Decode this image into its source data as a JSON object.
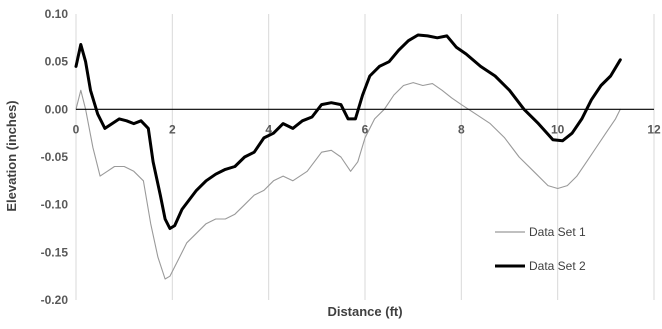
{
  "chart_data": {
    "type": "line",
    "title": "",
    "xlabel": "Distance (ft)",
    "ylabel": "Elevation (inches)",
    "xlim": [
      0,
      12
    ],
    "ylim": [
      -0.2,
      0.1
    ],
    "x_ticks": [
      "0",
      "2",
      "4",
      "6",
      "8",
      "10",
      "12"
    ],
    "y_ticks": [
      "0.10",
      "0.05",
      "0.00",
      "-0.05",
      "-0.10",
      "-0.15",
      "-0.20"
    ],
    "grid": "vertical",
    "legend_position": "right",
    "series": [
      {
        "name": "Data Set 1",
        "color": "#9a9a9a",
        "x": [
          0,
          0.1,
          0.2,
          0.35,
          0.5,
          0.65,
          0.8,
          1.0,
          1.2,
          1.4,
          1.55,
          1.7,
          1.85,
          1.95,
          2.1,
          2.3,
          2.5,
          2.7,
          2.9,
          3.1,
          3.3,
          3.5,
          3.7,
          3.9,
          4.1,
          4.3,
          4.5,
          4.8,
          5.1,
          5.3,
          5.5,
          5.7,
          5.85,
          6.0,
          6.2,
          6.4,
          6.6,
          6.8,
          7.0,
          7.2,
          7.4,
          7.6,
          7.8,
          8.0,
          8.3,
          8.6,
          8.9,
          9.2,
          9.5,
          9.8,
          10.0,
          10.2,
          10.4,
          10.6,
          10.8,
          11.0,
          11.2,
          11.3
        ],
        "y": [
          0.0,
          0.02,
          0.0,
          -0.04,
          -0.07,
          -0.065,
          -0.06,
          -0.06,
          -0.065,
          -0.075,
          -0.12,
          -0.155,
          -0.178,
          -0.175,
          -0.16,
          -0.14,
          -0.13,
          -0.12,
          -0.115,
          -0.115,
          -0.11,
          -0.1,
          -0.09,
          -0.085,
          -0.075,
          -0.07,
          -0.075,
          -0.065,
          -0.045,
          -0.043,
          -0.05,
          -0.065,
          -0.055,
          -0.03,
          -0.01,
          0.0,
          0.015,
          0.025,
          0.028,
          0.025,
          0.027,
          0.02,
          0.012,
          0.005,
          -0.005,
          -0.015,
          -0.03,
          -0.05,
          -0.065,
          -0.08,
          -0.083,
          -0.08,
          -0.07,
          -0.055,
          -0.04,
          -0.025,
          -0.01,
          0.0
        ]
      },
      {
        "name": "Data Set 2",
        "color": "#000000",
        "x": [
          0,
          0.1,
          0.2,
          0.3,
          0.45,
          0.6,
          0.75,
          0.9,
          1.05,
          1.2,
          1.35,
          1.5,
          1.6,
          1.75,
          1.85,
          1.95,
          2.05,
          2.2,
          2.35,
          2.5,
          2.7,
          2.9,
          3.1,
          3.3,
          3.5,
          3.7,
          3.9,
          4.1,
          4.3,
          4.5,
          4.7,
          4.9,
          5.1,
          5.3,
          5.5,
          5.65,
          5.8,
          5.95,
          6.1,
          6.3,
          6.5,
          6.7,
          6.9,
          7.1,
          7.3,
          7.5,
          7.7,
          7.9,
          8.1,
          8.4,
          8.7,
          9.0,
          9.3,
          9.6,
          9.9,
          10.1,
          10.3,
          10.5,
          10.7,
          10.9,
          11.1,
          11.3
        ],
        "y": [
          0.045,
          0.068,
          0.05,
          0.02,
          -0.005,
          -0.02,
          -0.015,
          -0.01,
          -0.012,
          -0.015,
          -0.012,
          -0.02,
          -0.055,
          -0.09,
          -0.115,
          -0.125,
          -0.122,
          -0.105,
          -0.095,
          -0.085,
          -0.075,
          -0.068,
          -0.063,
          -0.06,
          -0.05,
          -0.045,
          -0.03,
          -0.025,
          -0.015,
          -0.02,
          -0.012,
          -0.008,
          0.005,
          0.007,
          0.005,
          -0.01,
          -0.01,
          0.015,
          0.035,
          0.045,
          0.05,
          0.062,
          0.072,
          0.078,
          0.077,
          0.075,
          0.077,
          0.065,
          0.058,
          0.045,
          0.035,
          0.02,
          0.0,
          -0.015,
          -0.032,
          -0.033,
          -0.025,
          -0.01,
          0.01,
          0.025,
          0.035,
          0.052
        ]
      }
    ]
  }
}
